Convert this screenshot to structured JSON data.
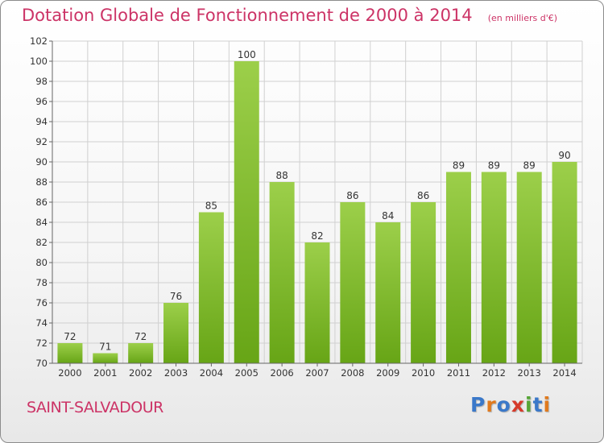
{
  "chart_data": {
    "type": "bar",
    "title": "Dotation Globale de Fonctionnement de 2000 à 2014",
    "unit_note": "(en milliers d'€)",
    "categories": [
      "2000",
      "2001",
      "2002",
      "2003",
      "2004",
      "2005",
      "2006",
      "2007",
      "2008",
      "2009",
      "2010",
      "2011",
      "2012",
      "2013",
      "2014"
    ],
    "values": [
      72,
      71,
      72,
      76,
      85,
      100,
      88,
      82,
      86,
      84,
      86,
      89,
      89,
      89,
      90
    ],
    "ylim": [
      70,
      102
    ],
    "yticks": [
      70,
      72,
      74,
      76,
      78,
      80,
      82,
      84,
      86,
      88,
      90,
      92,
      94,
      96,
      98,
      100,
      102
    ],
    "grid": true,
    "bar_color_top": "#9ccf4a",
    "bar_color_bottom": "#67a516"
  },
  "footer": {
    "commune": "SAINT-SALVADOUR"
  },
  "brand": {
    "name": "Proxiti",
    "letter_colors": [
      "#3a78c9",
      "#e07a1e",
      "#3a78c9",
      "#d63a2a",
      "#56a636",
      "#3a78c9",
      "#e07a1e"
    ]
  }
}
